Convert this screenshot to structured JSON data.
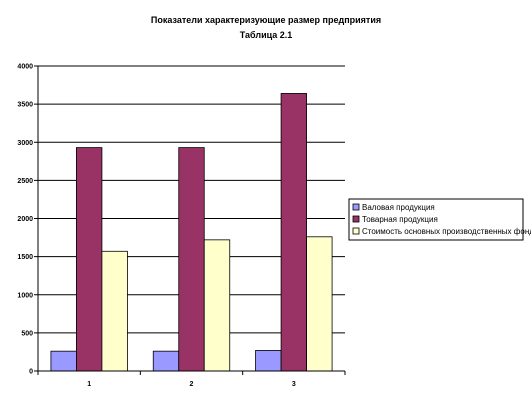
{
  "chart_data": {
    "type": "bar",
    "title": "Показатели характеризующие размер предприятия",
    "subtitle": "Таблица 2.1",
    "categories": [
      "1",
      "2",
      "3"
    ],
    "ylim": [
      0,
      4000
    ],
    "y_ticks": [
      0,
      500,
      1000,
      1500,
      2000,
      2500,
      3000,
      3500,
      4000
    ],
    "grid": true,
    "legend_position": "right",
    "series": [
      {
        "name": "Валовая продукция",
        "values": [
          260,
          260,
          270
        ],
        "color": "#9999ff"
      },
      {
        "name": "Товарная продукция",
        "values": [
          2930,
          2930,
          3640
        ],
        "color": "#993366"
      },
      {
        "name": "Стоимость основных производственных фондов",
        "values": [
          1570,
          1720,
          1760
        ],
        "color": "#ffffcc"
      }
    ]
  }
}
